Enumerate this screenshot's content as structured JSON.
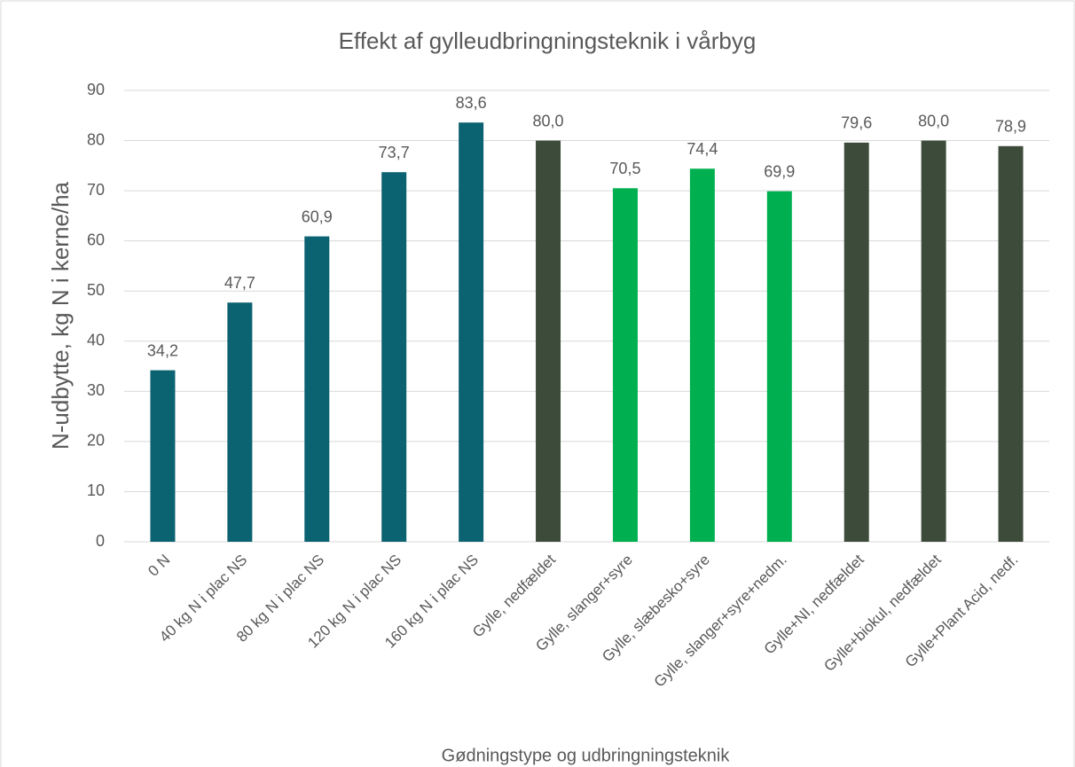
{
  "chart_data": {
    "type": "bar",
    "title": "Effekt af gylleudbringningsteknik i vårbyg",
    "x_label": "Gødningstype og udbringningsteknik",
    "y_label": "N-udbytte, kg N i kerne/ha",
    "categories": [
      "0 N",
      "40 kg N i plac NS",
      "80 kg N i plac NS",
      "120 kg N i plac NS",
      "160 kg N i plac NS",
      "Gylle, nedfældet",
      "Gylle, slanger+syre",
      "Gylle, slæbesko+syre",
      "Gylle, slanger+syre+nedm.",
      "Gylle+NI, nedfældet",
      "Gylle+biokul, nedfældet",
      "Gylle+Plant Acid, nedf."
    ],
    "values": [
      34.2,
      47.7,
      60.9,
      73.7,
      83.6,
      80.0,
      70.5,
      74.4,
      69.9,
      79.6,
      80.0,
      78.9
    ],
    "value_labels": [
      "34,2",
      "47,7",
      "60,9",
      "73,7",
      "83,6",
      "80,0",
      "70,5",
      "74,4",
      "69,9",
      "79,6",
      "80,0",
      "78,9"
    ],
    "colors": [
      "#0b6270",
      "#0b6270",
      "#0b6270",
      "#0b6270",
      "#0b6270",
      "#3d4c3a",
      "#00b050",
      "#00b050",
      "#00b050",
      "#3d4c3a",
      "#3d4c3a",
      "#3d4c3a"
    ],
    "ylim": [
      0,
      90
    ],
    "yticks": [
      0,
      10,
      20,
      30,
      40,
      50,
      60,
      70,
      80,
      90
    ],
    "grid": true
  }
}
